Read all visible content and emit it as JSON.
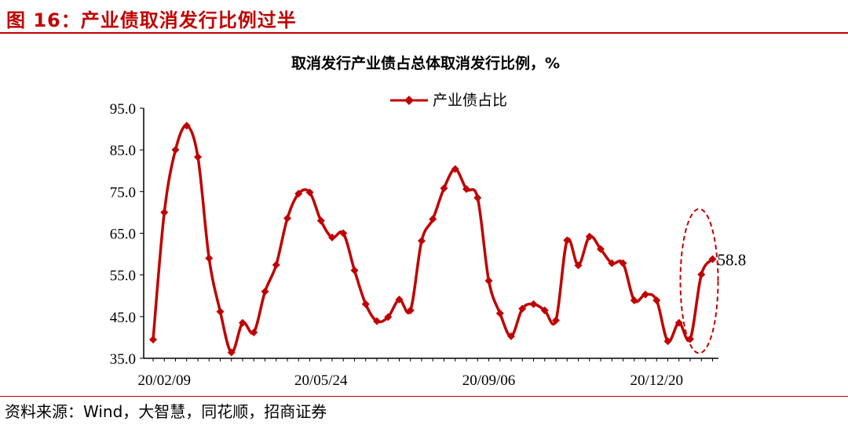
{
  "figure_title": "图 16：产业债取消发行比例过半",
  "source": "资料来源：Wind，大智慧，同花顺，招商证券",
  "colors": {
    "accent": "#c00000",
    "series": "#c00000",
    "axis": "#000000"
  },
  "chart_data": {
    "type": "line",
    "title": "取消发行产业债占总体取消发行比例，%",
    "legend": {
      "position": "top-center"
    },
    "ylim": [
      35.0,
      95.0
    ],
    "yticks": [
      "35.0",
      "45.0",
      "55.0",
      "65.0",
      "75.0",
      "85.0",
      "95.0"
    ],
    "xtick_labels": [
      {
        "index": 1,
        "label": "20/02/09"
      },
      {
        "index": 15,
        "label": "20/05/24"
      },
      {
        "index": 30,
        "label": "20/09/06"
      },
      {
        "index": 45,
        "label": "20/12/20"
      }
    ],
    "grid": false,
    "series": [
      {
        "name": "产业债占比",
        "marker": "diamond",
        "values": [
          39.5,
          70.0,
          85.0,
          90.8,
          83.3,
          59.0,
          46.2,
          36.4,
          43.5,
          41.2,
          51.0,
          57.4,
          68.6,
          74.5,
          74.8,
          68.0,
          64.0,
          65.0,
          56.1,
          48.0,
          43.9,
          44.9,
          49.1,
          46.5,
          63.2,
          68.4,
          75.8,
          80.4,
          75.6,
          73.5,
          53.6,
          45.8,
          40.3,
          46.9,
          48.0,
          46.5,
          44.1,
          63.3,
          57.3,
          64.2,
          61.2,
          57.8,
          57.8,
          48.9,
          50.3,
          48.9,
          39.1,
          43.5,
          39.6,
          55.1,
          58.8
        ]
      }
    ],
    "annotations": [
      {
        "label": "58.8",
        "point_index": 50,
        "highlight": "dashed-ellipse"
      }
    ]
  }
}
